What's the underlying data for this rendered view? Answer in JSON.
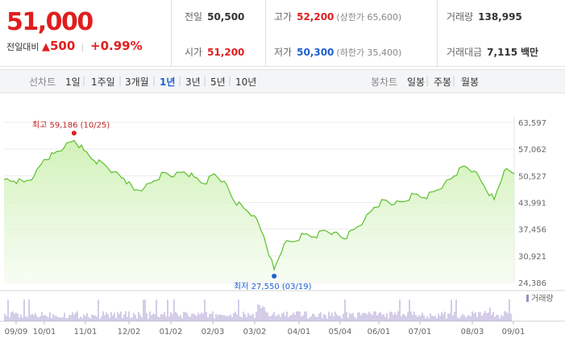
{
  "quote": {
    "price": "51,000",
    "change_label": "전일대비",
    "change_arrow": "▲",
    "change_value": "500",
    "change_percent": "+0.99%"
  },
  "stats": {
    "prev_close": {
      "label": "전일",
      "value": "50,500"
    },
    "high": {
      "label": "고가",
      "value": "52,200",
      "sub": "(상한가 65,600)"
    },
    "volume": {
      "label": "거래량",
      "value": "138,995"
    },
    "open": {
      "label": "시가",
      "value": "51,200"
    },
    "low": {
      "label": "저가",
      "value": "50,300",
      "sub": "(하한가 35,400)"
    },
    "trade_amount": {
      "label": "거래대금",
      "value": "7,115",
      "unit": "백만"
    }
  },
  "tabs": {
    "line_chart_label": "선차트",
    "ranges": [
      "1일",
      "1주일",
      "3개월",
      "1년",
      "3년",
      "5년",
      "10년"
    ],
    "active_range": "1년",
    "candle_chart_label": "봉차트",
    "candles": [
      "일봉",
      "주봉",
      "월봉"
    ]
  },
  "chart_data": {
    "type": "area",
    "y_ticks": [
      "63,597",
      "57,062",
      "50,527",
      "43,991",
      "37,456",
      "30,921",
      "24,386"
    ],
    "ylim": [
      24386,
      63597
    ],
    "x_ticks": [
      "09/09",
      "10/01",
      "11/01",
      "12/02",
      "01/02",
      "02/03",
      "03/02",
      "04/01",
      "05/04",
      "06/01",
      "07/01",
      "08/03",
      "09/01"
    ],
    "high_annotation": "최고 59,186 (10/25)",
    "low_annotation": "최저 27,550 (03/19)",
    "high": {
      "date": "10/25",
      "value": 59186
    },
    "low": {
      "date": "03/19",
      "value": 27550
    },
    "volume_legend": "거래량",
    "line_color": "#5cc02d",
    "fill_color": "#ccf0b0",
    "series": [
      {
        "date": "09/09",
        "value": 49500
      },
      {
        "date": "09/16",
        "value": 49200
      },
      {
        "date": "09/23",
        "value": 49000
      },
      {
        "date": "10/01",
        "value": 50400
      },
      {
        "date": "10/08",
        "value": 54500
      },
      {
        "date": "10/15",
        "value": 56000
      },
      {
        "date": "10/22",
        "value": 57400
      },
      {
        "date": "10/25",
        "value": 59186
      },
      {
        "date": "11/01",
        "value": 56700
      },
      {
        "date": "11/08",
        "value": 54300
      },
      {
        "date": "11/15",
        "value": 53400
      },
      {
        "date": "11/22",
        "value": 51500
      },
      {
        "date": "12/02",
        "value": 49800
      },
      {
        "date": "12/09",
        "value": 47000
      },
      {
        "date": "12/16",
        "value": 47500
      },
      {
        "date": "12/23",
        "value": 49300
      },
      {
        "date": "01/02",
        "value": 51300
      },
      {
        "date": "01/09",
        "value": 50400
      },
      {
        "date": "01/16",
        "value": 51500
      },
      {
        "date": "01/23",
        "value": 50200
      },
      {
        "date": "02/03",
        "value": 48600
      },
      {
        "date": "02/10",
        "value": 51000
      },
      {
        "date": "02/17",
        "value": 49200
      },
      {
        "date": "02/24",
        "value": 44300
      },
      {
        "date": "03/02",
        "value": 42500
      },
      {
        "date": "03/09",
        "value": 40800
      },
      {
        "date": "03/13",
        "value": 35500
      },
      {
        "date": "03/19",
        "value": 27550
      },
      {
        "date": "03/26",
        "value": 33800
      },
      {
        "date": "04/01",
        "value": 34400
      },
      {
        "date": "04/08",
        "value": 36200
      },
      {
        "date": "04/16",
        "value": 35600
      },
      {
        "date": "04/23",
        "value": 37200
      },
      {
        "date": "05/04",
        "value": 36700
      },
      {
        "date": "05/11",
        "value": 35100
      },
      {
        "date": "05/18",
        "value": 37400
      },
      {
        "date": "05/25",
        "value": 39600
      },
      {
        "date": "06/01",
        "value": 42800
      },
      {
        "date": "06/08",
        "value": 44600
      },
      {
        "date": "06/15",
        "value": 43500
      },
      {
        "date": "06/22",
        "value": 44200
      },
      {
        "date": "07/01",
        "value": 46000
      },
      {
        "date": "07/08",
        "value": 45200
      },
      {
        "date": "07/15",
        "value": 46700
      },
      {
        "date": "07/22",
        "value": 48500
      },
      {
        "date": "07/29",
        "value": 50500
      },
      {
        "date": "08/03",
        "value": 52900
      },
      {
        "date": "08/10",
        "value": 51700
      },
      {
        "date": "08/17",
        "value": 48000
      },
      {
        "date": "08/24",
        "value": 44700
      },
      {
        "date": "09/01",
        "value": 51800
      },
      {
        "date": "09/08",
        "value": 51000
      }
    ]
  }
}
